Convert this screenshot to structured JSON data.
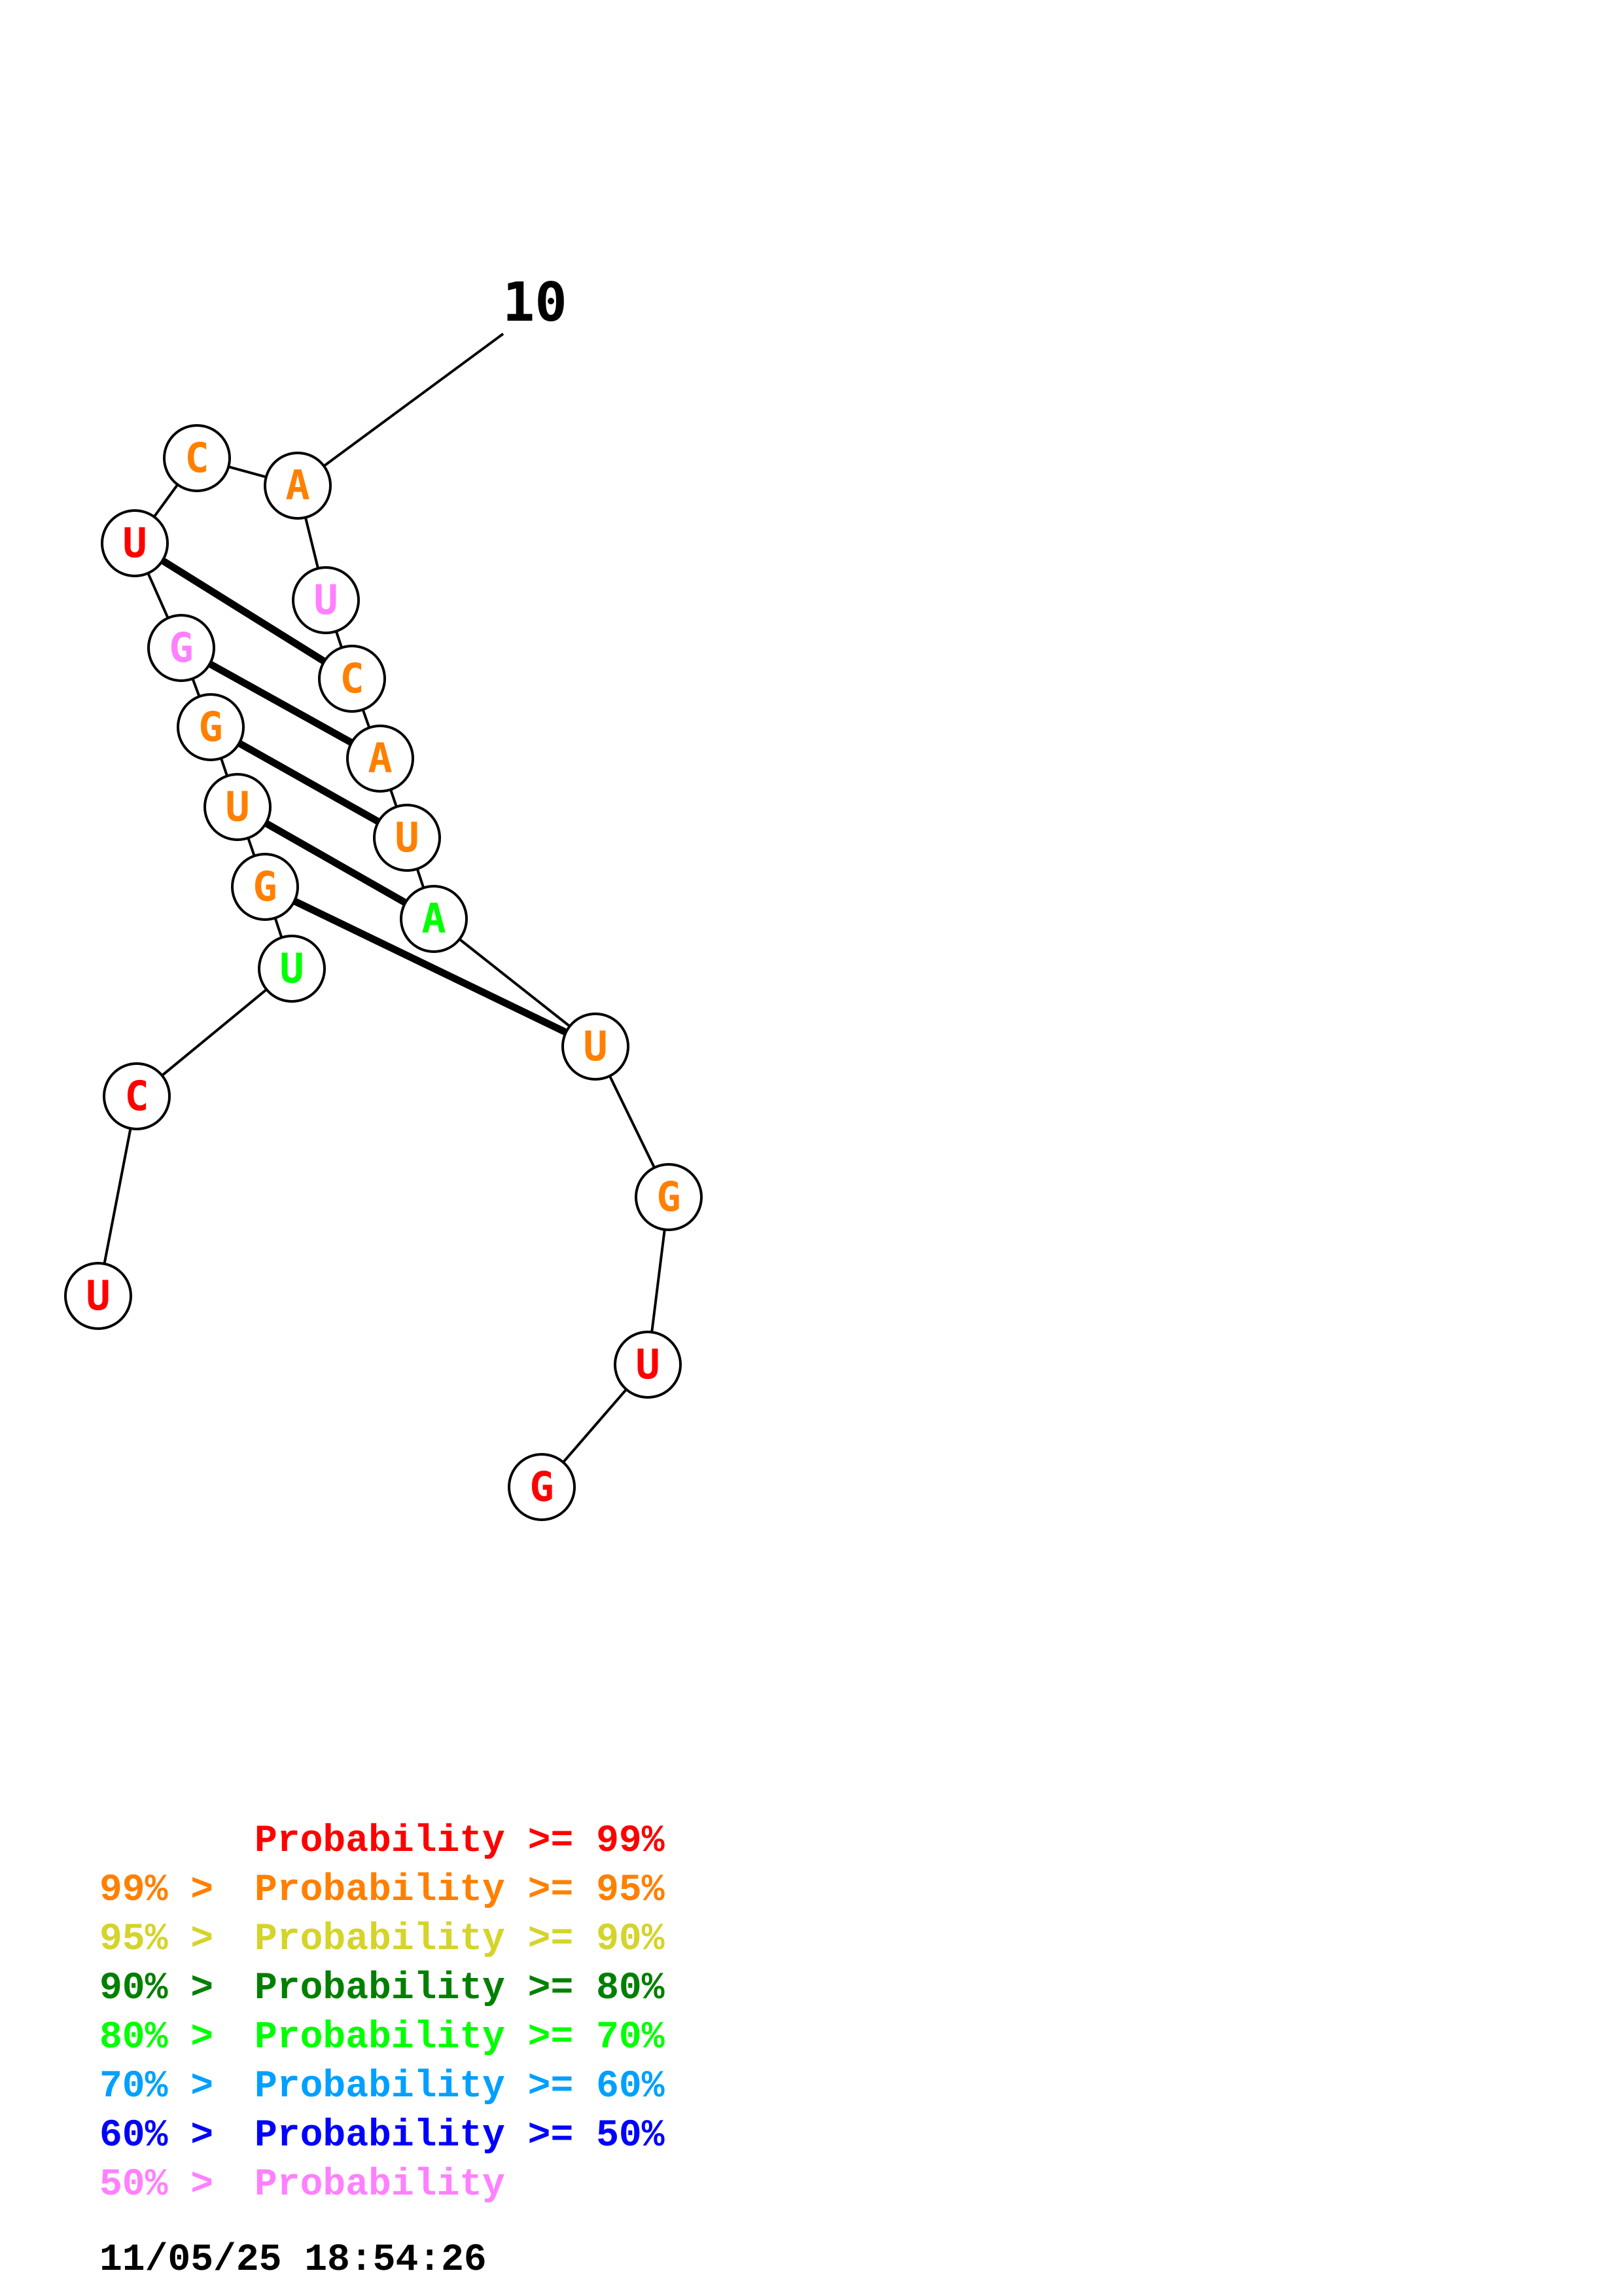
{
  "palette": {
    "p99": "#ff0000",
    "p95": "#ff8000",
    "p90": "#d4d42a",
    "p80": "#008000",
    "p70": "#00ff00",
    "p60": "#00a0ff",
    "p50": "#0000ff",
    "plow": "#ff80ff",
    "black": "#000000"
  },
  "structure": {
    "position_label": "10",
    "nucleotides": [
      {
        "base": "U",
        "color": "#ff0000"
      },
      {
        "base": "C",
        "color": "#ff0000"
      },
      {
        "base": "U",
        "color": "#00ff00"
      },
      {
        "base": "G",
        "color": "#ff8000"
      },
      {
        "base": "U",
        "color": "#ff8000"
      },
      {
        "base": "G",
        "color": "#ff8000"
      },
      {
        "base": "G",
        "color": "#ff80ff"
      },
      {
        "base": "U",
        "color": "#ff0000"
      },
      {
        "base": "C",
        "color": "#ff8000"
      },
      {
        "base": "A",
        "color": "#ff8000"
      },
      {
        "base": "U",
        "color": "#ff80ff"
      },
      {
        "base": "C",
        "color": "#ff8000"
      },
      {
        "base": "A",
        "color": "#ff8000"
      },
      {
        "base": "U",
        "color": "#ff8000"
      },
      {
        "base": "A",
        "color": "#00ff00"
      },
      {
        "base": "U",
        "color": "#ff8000"
      },
      {
        "base": "G",
        "color": "#ff8000"
      },
      {
        "base": "U",
        "color": "#ff0000"
      },
      {
        "base": "G",
        "color": "#ff0000"
      }
    ],
    "base_pairs": [
      [
        3,
        15
      ],
      [
        4,
        14
      ],
      [
        5,
        13
      ],
      [
        6,
        12
      ],
      [
        7,
        11
      ]
    ]
  },
  "legend": {
    "rows": [
      {
        "prefix": "",
        "main": "Probability >= 99%",
        "color": "#ff0000"
      },
      {
        "prefix": "99% > ",
        "main": "Probability >= 95%",
        "color": "#ff8000"
      },
      {
        "prefix": "95% > ",
        "main": "Probability >= 90%",
        "color": "#d4d42a"
      },
      {
        "prefix": "90% > ",
        "main": "Probability >= 80%",
        "color": "#008000"
      },
      {
        "prefix": "80% > ",
        "main": "Probability >= 70%",
        "color": "#00ff00"
      },
      {
        "prefix": "70% > ",
        "main": "Probability >= 60%",
        "color": "#00a0ff"
      },
      {
        "prefix": "60% > ",
        "main": "Probability >= 50%",
        "color": "#0000ff"
      },
      {
        "prefix": "50% > ",
        "main": "Probability",
        "color": "#ff80ff"
      }
    ],
    "timestamp": "11/05/25 18:54:26"
  }
}
